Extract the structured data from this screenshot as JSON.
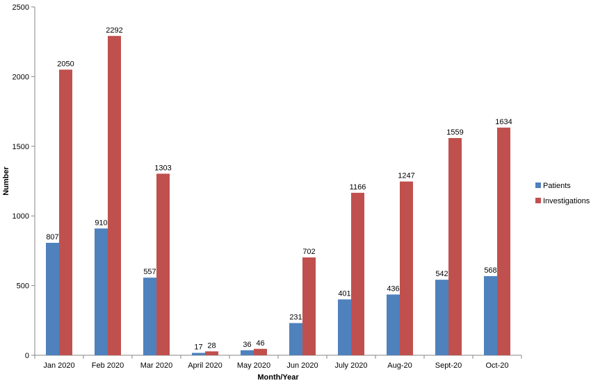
{
  "chart_data": {
    "type": "bar",
    "title": "",
    "xlabel": "Month/Year",
    "ylabel": "Number",
    "ylim": [
      0,
      2500
    ],
    "yticks": [
      0,
      500,
      1000,
      1500,
      2000,
      2500
    ],
    "grid": false,
    "legend_position": "right",
    "categories": [
      "Jan 2020",
      "Feb 2020",
      "Mar 2020",
      "April 2020",
      "May 2020",
      "Jun 2020",
      "July 2020",
      "Aug-20",
      "Sept-20",
      "Oct-20"
    ],
    "series": [
      {
        "name": "Patients",
        "color": "#4f81bd",
        "values": [
          807,
          910,
          557,
          17,
          36,
          231,
          401,
          436,
          542,
          568
        ]
      },
      {
        "name": "Investigations",
        "color": "#c0504d",
        "values": [
          2050,
          2292,
          1303,
          28,
          46,
          702,
          1166,
          1247,
          1559,
          1634
        ]
      }
    ]
  }
}
